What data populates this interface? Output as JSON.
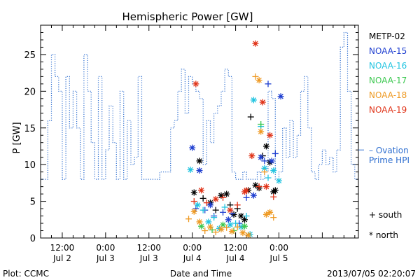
{
  "footer": {
    "left": "Plot: CCMC",
    "right": "2013/07/05 02:20:07"
  },
  "chart_data": {
    "type": "scatter",
    "title": "Hemispheric Power [GW]",
    "xlabel": "Date and Time",
    "ylabel": "P [GW]",
    "ylim": [
      0,
      29
    ],
    "yticks": [
      0,
      5,
      10,
      15,
      20,
      25
    ],
    "x_unit": "hours since Jul 1 06:00",
    "xlim": [
      0,
      88
    ],
    "xticks": [
      {
        "x": 6,
        "top": "12:00",
        "bottom": "Jul 2"
      },
      {
        "x": 18,
        "top": "0:00",
        "bottom": "Jul 3"
      },
      {
        "x": 30,
        "top": "12:00",
        "bottom": "Jul 3"
      },
      {
        "x": 42,
        "top": "0:00",
        "bottom": "Jul 4"
      },
      {
        "x": 54,
        "top": "12:00",
        "bottom": "Jul 4"
      },
      {
        "x": 66,
        "top": "0:00",
        "bottom": "Jul 5"
      }
    ],
    "legend": [
      {
        "name": "METP-02",
        "color": "#000000"
      },
      {
        "name": "NOAA-15",
        "color": "#1f3fd0"
      },
      {
        "name": "NOAA-16",
        "color": "#22c4e0"
      },
      {
        "name": "NOAA-17",
        "color": "#3cc850"
      },
      {
        "name": "NOAA-18",
        "color": "#ee9922"
      },
      {
        "name": "NOAA-19",
        "color": "#e03318"
      }
    ],
    "ovation": {
      "name_line1": "– Ovation",
      "name_line2": "Prime HPI",
      "color": "#2f6fd0",
      "level": 12,
      "steps": [
        [
          0,
          8
        ],
        [
          2,
          8
        ],
        [
          2,
          16
        ],
        [
          3,
          16
        ],
        [
          3,
          25
        ],
        [
          4,
          25
        ],
        [
          4,
          22
        ],
        [
          5,
          22
        ],
        [
          5,
          20
        ],
        [
          6,
          20
        ],
        [
          6,
          8
        ],
        [
          7,
          8
        ],
        [
          7,
          22
        ],
        [
          8,
          22
        ],
        [
          8,
          15
        ],
        [
          9,
          15
        ],
        [
          9,
          20
        ],
        [
          10,
          20
        ],
        [
          10,
          15
        ],
        [
          11,
          15
        ],
        [
          11,
          8
        ],
        [
          12,
          8
        ],
        [
          12,
          25
        ],
        [
          13,
          25
        ],
        [
          13,
          20
        ],
        [
          14,
          20
        ],
        [
          14,
          13
        ],
        [
          15,
          13
        ],
        [
          15,
          8
        ],
        [
          16,
          8
        ],
        [
          16,
          22
        ],
        [
          17,
          22
        ],
        [
          17,
          8
        ],
        [
          18,
          8
        ],
        [
          18,
          12
        ],
        [
          19,
          12
        ],
        [
          19,
          18
        ],
        [
          20,
          18
        ],
        [
          20,
          13
        ],
        [
          21,
          13
        ],
        [
          21,
          8
        ],
        [
          22,
          8
        ],
        [
          22,
          20
        ],
        [
          23,
          20
        ],
        [
          23,
          8
        ],
        [
          24,
          8
        ],
        [
          24,
          16
        ],
        [
          25,
          16
        ],
        [
          25,
          10
        ],
        [
          26,
          10
        ],
        [
          26,
          11
        ],
        [
          27,
          11
        ],
        [
          27,
          22
        ],
        [
          28,
          22
        ],
        [
          28,
          8
        ],
        [
          33,
          8
        ],
        [
          33,
          9
        ],
        [
          36,
          9
        ],
        [
          36,
          15
        ],
        [
          37,
          15
        ],
        [
          37,
          16
        ],
        [
          38,
          16
        ],
        [
          38,
          20
        ],
        [
          39,
          20
        ],
        [
          39,
          23
        ],
        [
          40,
          23
        ],
        [
          40,
          17
        ],
        [
          41,
          17
        ],
        [
          41,
          22
        ],
        [
          42,
          22
        ],
        [
          42,
          21
        ],
        [
          43,
          21
        ],
        [
          43,
          20
        ],
        [
          44,
          20
        ],
        [
          44,
          19
        ],
        [
          45,
          19
        ],
        [
          45,
          10
        ],
        [
          46,
          10
        ],
        [
          46,
          16
        ],
        [
          47,
          16
        ],
        [
          47,
          13
        ],
        [
          48,
          13
        ],
        [
          48,
          17
        ],
        [
          49,
          17
        ],
        [
          49,
          18
        ],
        [
          50,
          18
        ],
        [
          50,
          20
        ],
        [
          51,
          20
        ],
        [
          51,
          23
        ],
        [
          52,
          23
        ],
        [
          52,
          22
        ],
        [
          53,
          22
        ],
        [
          53,
          9
        ],
        [
          54,
          9
        ],
        [
          54,
          8
        ],
        [
          56,
          8
        ],
        [
          56,
          9
        ],
        [
          57,
          9
        ],
        [
          57,
          8
        ],
        [
          60,
          8
        ],
        [
          60,
          9
        ],
        [
          61,
          9
        ],
        [
          61,
          8
        ],
        [
          62,
          8
        ],
        [
          62,
          9
        ],
        [
          63,
          9
        ],
        [
          63,
          20
        ],
        [
          64,
          20
        ],
        [
          64,
          19
        ],
        [
          65,
          19
        ],
        [
          65,
          8
        ],
        [
          66,
          8
        ],
        [
          66,
          9
        ],
        [
          67,
          9
        ],
        [
          67,
          15
        ],
        [
          68,
          15
        ],
        [
          68,
          11
        ],
        [
          69,
          11
        ],
        [
          69,
          16
        ],
        [
          70,
          16
        ],
        [
          70,
          11
        ],
        [
          71,
          11
        ],
        [
          71,
          14
        ],
        [
          72,
          14
        ],
        [
          72,
          20
        ],
        [
          73,
          20
        ],
        [
          73,
          22
        ],
        [
          74,
          22
        ],
        [
          74,
          15
        ],
        [
          75,
          15
        ],
        [
          75,
          9
        ],
        [
          76,
          9
        ],
        [
          76,
          8
        ],
        [
          77,
          8
        ],
        [
          77,
          10
        ],
        [
          78,
          10
        ],
        [
          78,
          12
        ],
        [
          79,
          12
        ],
        [
          79,
          10
        ],
        [
          80,
          10
        ],
        [
          80,
          11
        ],
        [
          81,
          11
        ],
        [
          81,
          9
        ],
        [
          82,
          9
        ],
        [
          82,
          12
        ],
        [
          83,
          12
        ],
        [
          83,
          26
        ],
        [
          84,
          26
        ],
        [
          84,
          28
        ],
        [
          85,
          28
        ],
        [
          85,
          20
        ],
        [
          86,
          20
        ],
        [
          86,
          10
        ],
        [
          87,
          10
        ],
        [
          87,
          8
        ],
        [
          88,
          8
        ]
      ]
    },
    "series": [
      {
        "name": "METP-02",
        "points": [
          {
            "x": 42.5,
            "y": 6.2,
            "m": "*"
          },
          {
            "x": 44.0,
            "y": 10.5,
            "m": "*"
          },
          {
            "x": 45.0,
            "y": 5.4,
            "m": "+"
          },
          {
            "x": 47.0,
            "y": 4.8,
            "m": "*"
          },
          {
            "x": 48.5,
            "y": 3.8,
            "m": "+"
          },
          {
            "x": 50.0,
            "y": 5.8,
            "m": "*"
          },
          {
            "x": 51.5,
            "y": 6.0,
            "m": "*"
          },
          {
            "x": 52.5,
            "y": 4.5,
            "m": "+"
          },
          {
            "x": 53.5,
            "y": 3.2,
            "m": "*"
          },
          {
            "x": 54.5,
            "y": 4.0,
            "m": "+"
          },
          {
            "x": 55.5,
            "y": 3.0,
            "m": "*"
          },
          {
            "x": 56.5,
            "y": 2.5,
            "m": "*"
          },
          {
            "x": 57.5,
            "y": 6.5,
            "m": "*"
          },
          {
            "x": 58.2,
            "y": 16.5,
            "m": "+"
          },
          {
            "x": 59.5,
            "y": 7.2,
            "m": "*"
          },
          {
            "x": 60.5,
            "y": 6.8,
            "m": "*"
          },
          {
            "x": 61.5,
            "y": 11.2,
            "m": "+"
          },
          {
            "x": 62.5,
            "y": 12.5,
            "m": "*"
          },
          {
            "x": 63.5,
            "y": 10.3,
            "m": "*"
          },
          {
            "x": 64.5,
            "y": 6.3,
            "m": "*"
          },
          {
            "x": 65.0,
            "y": 6.5,
            "m": "*"
          }
        ]
      },
      {
        "name": "NOAA-15",
        "points": [
          {
            "x": 42.0,
            "y": 12.3,
            "m": "*"
          },
          {
            "x": 43.0,
            "y": 4.0,
            "m": "+"
          },
          {
            "x": 44.0,
            "y": 9.2,
            "m": "*"
          },
          {
            "x": 45.5,
            "y": 3.8,
            "m": "+"
          },
          {
            "x": 47.0,
            "y": 4.5,
            "m": "*"
          },
          {
            "x": 48.0,
            "y": 3.0,
            "m": "+"
          },
          {
            "x": 50.5,
            "y": 3.5,
            "m": "+"
          },
          {
            "x": 52.0,
            "y": 2.5,
            "m": "*"
          },
          {
            "x": 53.0,
            "y": 3.3,
            "m": "+"
          },
          {
            "x": 55.0,
            "y": 2.0,
            "m": "+"
          },
          {
            "x": 57.0,
            "y": 5.5,
            "m": "+"
          },
          {
            "x": 59.0,
            "y": 5.8,
            "m": "*"
          },
          {
            "x": 61.0,
            "y": 11.0,
            "m": "*"
          },
          {
            "x": 62.0,
            "y": 10.5,
            "m": "+"
          },
          {
            "x": 63.0,
            "y": 21.0,
            "m": "+"
          },
          {
            "x": 64.0,
            "y": 10.5,
            "m": "*"
          },
          {
            "x": 65.0,
            "y": 11.5,
            "m": "+"
          },
          {
            "x": 66.5,
            "y": 19.3,
            "m": "*"
          }
        ]
      },
      {
        "name": "NOAA-16",
        "points": [
          {
            "x": 41.5,
            "y": 9.3,
            "m": "*"
          },
          {
            "x": 43.5,
            "y": 4.5,
            "m": "*"
          },
          {
            "x": 45.0,
            "y": 3.8,
            "m": "+"
          },
          {
            "x": 46.5,
            "y": 2.2,
            "m": "*"
          },
          {
            "x": 48.0,
            "y": 2.8,
            "m": "+"
          },
          {
            "x": 49.5,
            "y": 1.3,
            "m": "*"
          },
          {
            "x": 51.0,
            "y": 4.2,
            "m": "+"
          },
          {
            "x": 52.5,
            "y": 1.8,
            "m": "*"
          },
          {
            "x": 54.0,
            "y": 2.0,
            "m": "+"
          },
          {
            "x": 55.5,
            "y": 1.5,
            "m": "*"
          },
          {
            "x": 57.0,
            "y": 3.0,
            "m": "+"
          },
          {
            "x": 58.0,
            "y": 0.5,
            "m": "*"
          },
          {
            "x": 59.0,
            "y": 18.8,
            "m": "*"
          },
          {
            "x": 61.0,
            "y": 15.2,
            "m": "+"
          },
          {
            "x": 62.0,
            "y": 9.5,
            "m": "*"
          },
          {
            "x": 63.0,
            "y": 8.2,
            "m": "+"
          },
          {
            "x": 64.5,
            "y": 9.2,
            "m": "*"
          },
          {
            "x": 66.0,
            "y": 7.8,
            "m": "*"
          }
        ]
      },
      {
        "name": "NOAA-17",
        "points": [
          {
            "x": 44.5,
            "y": 1.6,
            "m": "*"
          },
          {
            "x": 47.5,
            "y": 1.1,
            "m": "+"
          },
          {
            "x": 50.5,
            "y": 1.8,
            "m": "*"
          },
          {
            "x": 53.5,
            "y": 1.0,
            "m": "+"
          },
          {
            "x": 56.5,
            "y": 1.6,
            "m": "*"
          },
          {
            "x": 61.0,
            "y": 15.5,
            "m": "+"
          }
        ]
      },
      {
        "name": "NOAA-18",
        "points": [
          {
            "x": 41.0,
            "y": 2.6,
            "m": "+"
          },
          {
            "x": 42.5,
            "y": 3.6,
            "m": "*"
          },
          {
            "x": 44.0,
            "y": 2.2,
            "m": "*"
          },
          {
            "x": 45.5,
            "y": 1.0,
            "m": "+"
          },
          {
            "x": 47.0,
            "y": 1.5,
            "m": "*"
          },
          {
            "x": 48.5,
            "y": 0.8,
            "m": "+"
          },
          {
            "x": 50.0,
            "y": 1.2,
            "m": "*"
          },
          {
            "x": 51.5,
            "y": 1.4,
            "m": "+"
          },
          {
            "x": 53.0,
            "y": 0.9,
            "m": "*"
          },
          {
            "x": 54.5,
            "y": 1.5,
            "m": "+"
          },
          {
            "x": 56.0,
            "y": 0.7,
            "m": "*"
          },
          {
            "x": 57.5,
            "y": 0.4,
            "m": "*"
          },
          {
            "x": 59.5,
            "y": 22.0,
            "m": "+"
          },
          {
            "x": 60.5,
            "y": 21.5,
            "m": "*"
          },
          {
            "x": 61.0,
            "y": 14.5,
            "m": "*"
          },
          {
            "x": 62.0,
            "y": 9.0,
            "m": "+"
          },
          {
            "x": 63.5,
            "y": 3.5,
            "m": "*"
          },
          {
            "x": 64.5,
            "y": 2.8,
            "m": "+"
          },
          {
            "x": 62.5,
            "y": 3.2,
            "m": "*"
          }
        ]
      },
      {
        "name": "NOAA-19",
        "points": [
          {
            "x": 43.0,
            "y": 21.0,
            "m": "*"
          },
          {
            "x": 42.5,
            "y": 5.0,
            "m": "+"
          },
          {
            "x": 44.5,
            "y": 6.5,
            "m": "*"
          },
          {
            "x": 46.0,
            "y": 4.8,
            "m": "+"
          },
          {
            "x": 48.5,
            "y": 5.3,
            "m": "*"
          },
          {
            "x": 50.5,
            "y": 5.5,
            "m": "+"
          },
          {
            "x": 52.5,
            "y": 3.8,
            "m": "*"
          },
          {
            "x": 54.5,
            "y": 4.5,
            "m": "+"
          },
          {
            "x": 56.5,
            "y": 6.3,
            "m": "*"
          },
          {
            "x": 58.5,
            "y": 11.2,
            "m": "*"
          },
          {
            "x": 59.5,
            "y": 26.5,
            "m": "*"
          },
          {
            "x": 60.5,
            "y": 7.0,
            "m": "+"
          },
          {
            "x": 61.5,
            "y": 18.5,
            "m": "*"
          },
          {
            "x": 62.5,
            "y": 7.0,
            "m": "*"
          },
          {
            "x": 63.5,
            "y": 14.0,
            "m": "*"
          },
          {
            "x": 64.5,
            "y": 5.6,
            "m": "+"
          },
          {
            "x": 57.0,
            "y": 6.5,
            "m": "*"
          }
        ]
      }
    ],
    "marker_legend": [
      {
        "symbol": "+",
        "label": "south"
      },
      {
        "symbol": "*",
        "label": "north"
      }
    ]
  }
}
